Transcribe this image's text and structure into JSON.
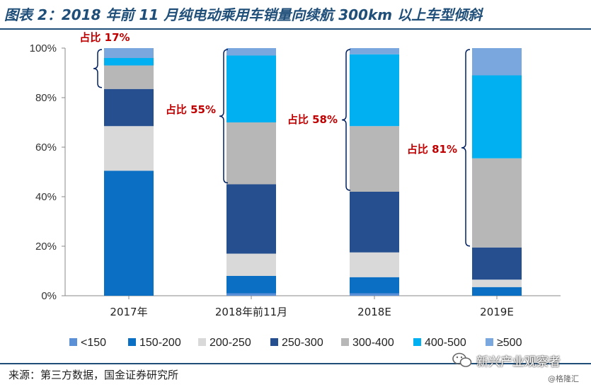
{
  "title": "图表 2：2018 年前 11 月纯电动乘用车销量向续航 300km 以上车型倾斜",
  "source": "来源：第三方数据，国金证券研究所",
  "watermark": {
    "account": "新兴产业观察者",
    "site": "@格隆汇"
  },
  "colors": {
    "<150": "#5b8fd6",
    "150-200": "#0b6fc4",
    "200-250": "#d9d9d9",
    "250-300": "#254f8e",
    "300-400": "#b7b7b7",
    "400-500": "#00b0f0",
    ">=500": "#7aa7de",
    "annotation": "#c00000",
    "brace": "#002060"
  },
  "chart_data": {
    "type": "bar",
    "stacked": true,
    "categories": [
      "2017年",
      "2018年前11月",
      "2018E",
      "2019E"
    ],
    "series": [
      {
        "name": "<150",
        "values": [
          0,
          1,
          1,
          0
        ]
      },
      {
        "name": "150-200",
        "values": [
          50.5,
          7,
          6.5,
          3.5
        ]
      },
      {
        "name": "200-250",
        "values": [
          18,
          9,
          10,
          3
        ]
      },
      {
        "name": "250-300",
        "values": [
          15,
          28,
          24.5,
          13
        ]
      },
      {
        "name": "300-400",
        "values": [
          9.5,
          25,
          26.5,
          36
        ]
      },
      {
        "name": "400-500",
        "values": [
          3,
          27,
          29,
          33.5
        ]
      },
      {
        "name": ">=500",
        "values": [
          4,
          3,
          2.5,
          11
        ]
      }
    ],
    "ylim": [
      0,
      100
    ],
    "yticks": [
      "0%",
      "20%",
      "40%",
      "60%",
      "80%",
      "100%"
    ],
    "grid": false,
    "legend": {
      "position": "bottom",
      "labels": [
        "<150",
        "150-200",
        "200-250",
        "250-300",
        "300-400",
        "400-500",
        "≥500"
      ]
    },
    "annotations": [
      {
        "text": "占比 17%",
        "category": "2017年",
        "from": 83.5,
        "to": 100
      },
      {
        "text": "占比 55%",
        "category": "2018年前11月",
        "from": 45,
        "to": 100
      },
      {
        "text": "占比 58%",
        "category": "2018E",
        "from": 42,
        "to": 100
      },
      {
        "text": "占比 81%",
        "category": "2019E",
        "from": 19.5,
        "to": 100
      }
    ]
  }
}
